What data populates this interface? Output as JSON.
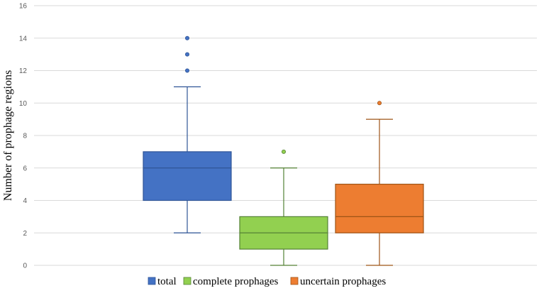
{
  "chart_data": {
    "type": "boxplot",
    "title": "",
    "xlabel": "",
    "ylabel": "Number of prophage regions",
    "ylim": [
      0,
      16
    ],
    "yticks": [
      0,
      2,
      4,
      6,
      8,
      10,
      12,
      14,
      16
    ],
    "grid": true,
    "legend_position": "bottom",
    "series": [
      {
        "name": "total",
        "color": "#4472C4",
        "stroke": "#2F5597",
        "min": 2,
        "q1": 4,
        "median": 6,
        "q3": 7,
        "max": 11,
        "outliers": [
          12,
          13,
          14
        ]
      },
      {
        "name": "complete prophages",
        "color": "#92D050",
        "stroke": "#548235",
        "min": 0,
        "q1": 1,
        "median": 2,
        "q3": 3,
        "max": 6,
        "outliers": [
          7
        ]
      },
      {
        "name": "uncertain prophages",
        "color": "#ED7D31",
        "stroke": "#9E5416",
        "min": 0,
        "q1": 2,
        "median": 3,
        "q3": 5,
        "max": 9,
        "outliers": [
          10
        ]
      }
    ]
  }
}
